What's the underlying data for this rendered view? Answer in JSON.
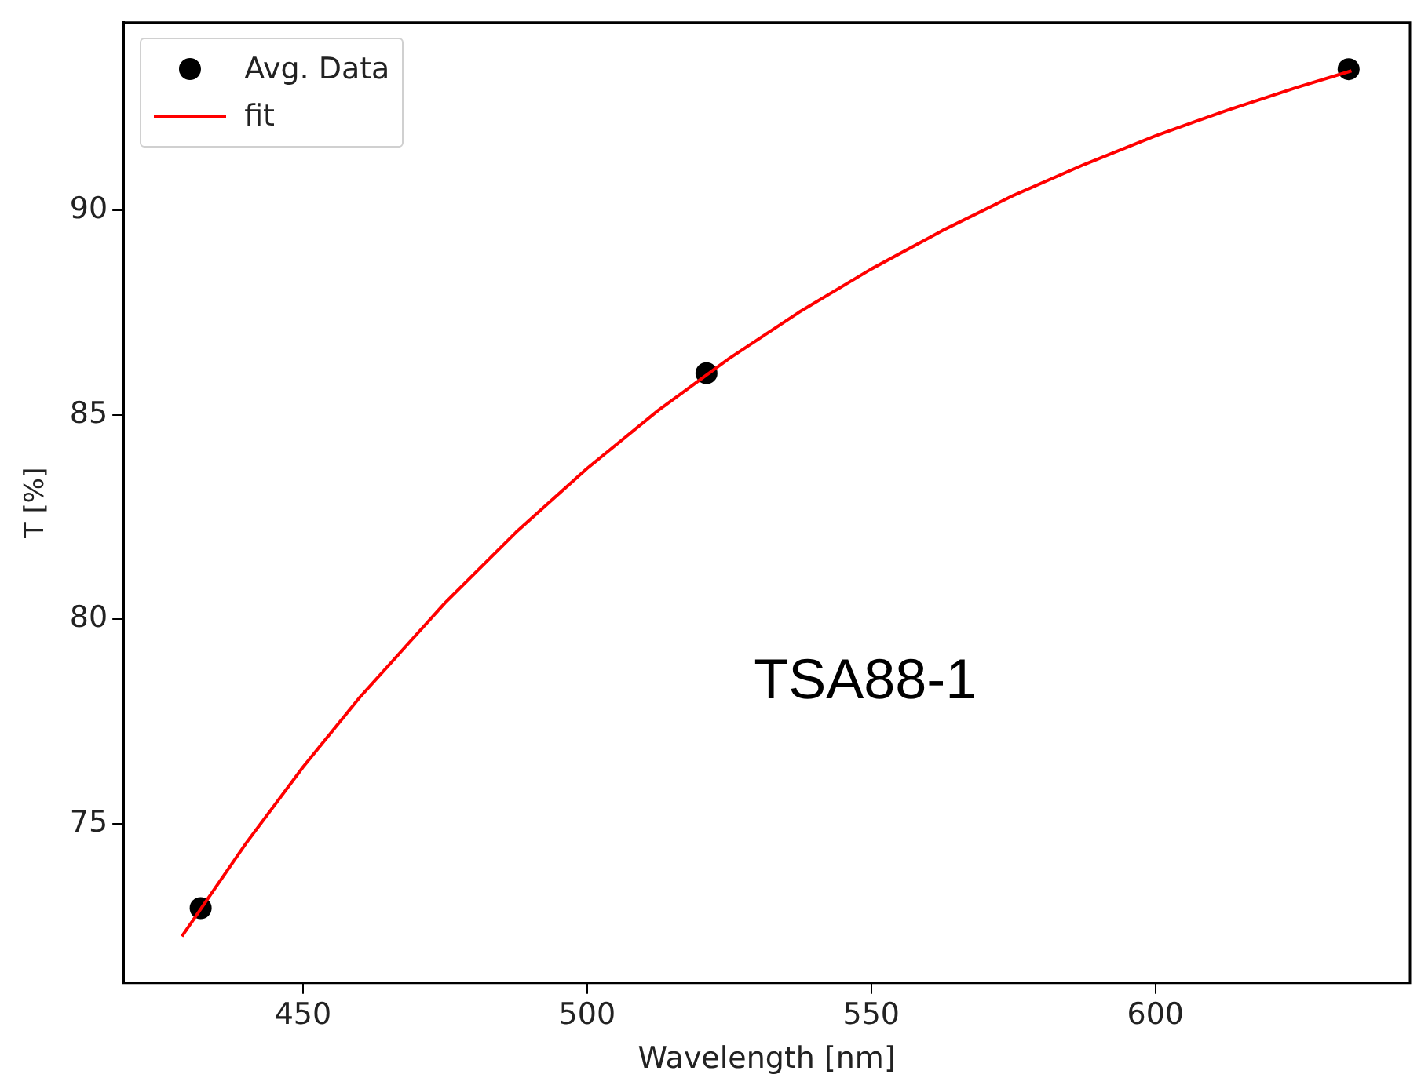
{
  "chart_data": {
    "type": "scatter",
    "xlabel": "Wavelength [nm]",
    "ylabel": "T [%]",
    "xlim": [
      418.4,
      644.8
    ],
    "xticks": [
      450,
      500,
      550,
      600
    ],
    "ylim": [
      71.1,
      94.6
    ],
    "yticks": [
      75,
      80,
      85,
      90
    ],
    "grid": false,
    "legend": "top left",
    "marker": "circle",
    "annotations": [
      "TSA88-1"
    ],
    "series": [
      {
        "name": "Avg. Data",
        "color": "#000000",
        "x": [
          432,
          521,
          634
        ],
        "values": [
          72.93,
          86.02,
          93.46
        ]
      },
      {
        "name": "fit",
        "type": "line",
        "color": "#ff0000",
        "line_style": "solid",
        "marker": "none",
        "x": [
          428.7,
          440,
          450,
          460,
          475,
          487.5,
          500,
          512.5,
          525,
          537.5,
          550,
          562.5,
          575,
          587.5,
          600,
          612.5,
          625,
          634.5
        ],
        "values": [
          72.24,
          74.52,
          76.38,
          78.09,
          80.4,
          82.13,
          83.69,
          85.11,
          86.38,
          87.53,
          88.57,
          89.51,
          90.37,
          91.13,
          91.83,
          92.45,
          93.02,
          93.42
        ]
      }
    ]
  }
}
